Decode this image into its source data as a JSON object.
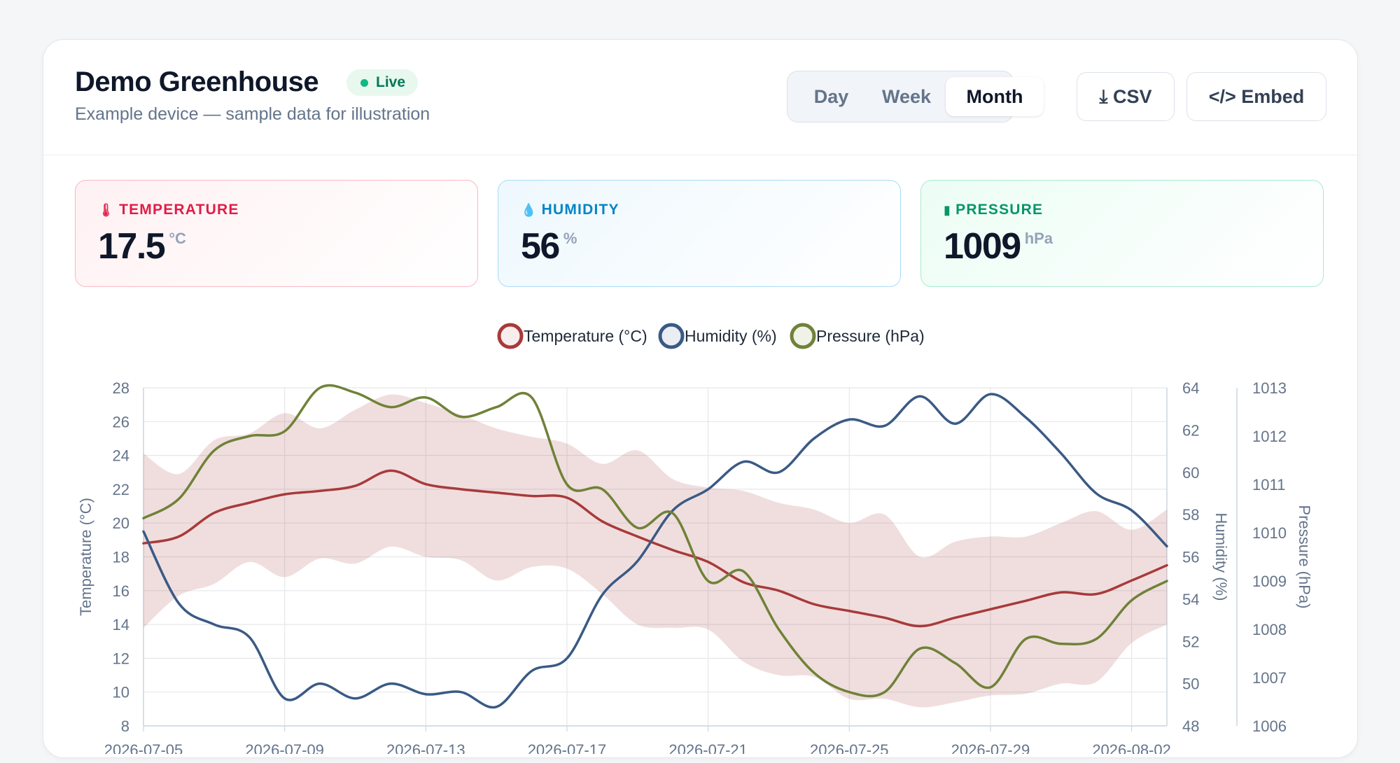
{
  "header": {
    "title": "Demo Greenhouse",
    "live_label": "Live",
    "subtitle": "Example device — sample data for illustration"
  },
  "range_tabs": [
    {
      "label": "Day",
      "active": false
    },
    {
      "label": "Week",
      "active": false
    },
    {
      "label": "Month",
      "active": true
    }
  ],
  "actions": {
    "csv_label": "⤓ CSV",
    "embed_label": "</> Embed"
  },
  "stats": {
    "temperature": {
      "label": "TEMPERATURE",
      "value": "17.5",
      "unit": "°C",
      "icon": "thermometer-icon",
      "color": "#e11d48"
    },
    "humidity": {
      "label": "HUMIDITY",
      "value": "56",
      "unit": "%",
      "icon": "droplet-icon",
      "color": "#0284c7"
    },
    "pressure": {
      "label": "PRESSURE",
      "value": "1009",
      "unit": "hPa",
      "icon": "gauge-icon",
      "color": "#059669"
    }
  },
  "chart_data": {
    "type": "line",
    "x": [
      "2026-07-05",
      "2026-07-06",
      "2026-07-07",
      "2026-07-08",
      "2026-07-09",
      "2026-07-10",
      "2026-07-11",
      "2026-07-12",
      "2026-07-13",
      "2026-07-14",
      "2026-07-15",
      "2026-07-16",
      "2026-07-17",
      "2026-07-18",
      "2026-07-19",
      "2026-07-20",
      "2026-07-21",
      "2026-07-22",
      "2026-07-23",
      "2026-07-24",
      "2026-07-25",
      "2026-07-26",
      "2026-07-27",
      "2026-07-28",
      "2026-07-29",
      "2026-07-30",
      "2026-07-31",
      "2026-08-01",
      "2026-08-02",
      "2026-08-03"
    ],
    "x_ticks": [
      "2026-07-05",
      "2026-07-09",
      "2026-07-13",
      "2026-07-17",
      "2026-07-21",
      "2026-07-25",
      "2026-07-29",
      "2026-08-02"
    ],
    "axes": {
      "y_left": {
        "label": "Temperature (°C)",
        "min": 8,
        "max": 28,
        "ticks": [
          8,
          10,
          12,
          14,
          16,
          18,
          20,
          22,
          24,
          26,
          28
        ]
      },
      "y_right1": {
        "label": "Humidity (%)",
        "min": 48,
        "max": 64,
        "ticks": [
          48,
          50,
          52,
          54,
          56,
          58,
          60,
          62,
          64
        ]
      },
      "y_right2": {
        "label": "Pressure (hPa)",
        "min": 1006,
        "max": 1013,
        "ticks": [
          1006,
          1007,
          1008,
          1009,
          1010,
          1011,
          1012,
          1013
        ]
      }
    },
    "grid": true,
    "legend_position": "top-center",
    "series": [
      {
        "name": "Temperature (°C)",
        "axis": "y_left",
        "color": "#a83a3a",
        "values": [
          18.8,
          19.2,
          20.6,
          21.2,
          21.7,
          21.9,
          22.2,
          23.1,
          22.3,
          22.0,
          21.8,
          21.6,
          21.5,
          20.1,
          19.2,
          18.4,
          17.7,
          16.5,
          16.0,
          15.2,
          14.8,
          14.4,
          13.9,
          14.4,
          14.9,
          15.4,
          15.9,
          15.8,
          16.6,
          17.5
        ],
        "band_min": [
          13.8,
          15.7,
          16.4,
          17.7,
          16.8,
          17.9,
          17.6,
          18.6,
          18.0,
          17.8,
          16.6,
          17.4,
          17.3,
          15.8,
          14.0,
          13.8,
          13.7,
          11.8,
          11.0,
          10.9,
          9.6,
          9.6,
          9.1,
          9.4,
          9.8,
          9.9,
          10.5,
          10.6,
          12.9,
          14.0
        ],
        "band_max": [
          24.1,
          22.9,
          24.9,
          25.3,
          26.5,
          25.6,
          26.7,
          27.6,
          27.1,
          26.4,
          25.6,
          25.1,
          24.7,
          23.5,
          24.3,
          22.6,
          22.1,
          21.9,
          21.2,
          20.8,
          20.0,
          20.5,
          18.0,
          18.9,
          19.2,
          19.2,
          20.0,
          20.7,
          19.6,
          20.8
        ]
      },
      {
        "name": "Humidity (%)",
        "axis": "y_right1",
        "color": "#3a5a85",
        "values": [
          57.2,
          53.8,
          52.8,
          52.2,
          49.3,
          50.0,
          49.3,
          50.0,
          49.5,
          49.6,
          48.9,
          50.6,
          51.2,
          54.2,
          55.8,
          58.2,
          59.2,
          60.5,
          60.0,
          61.6,
          62.5,
          62.2,
          63.6,
          62.3,
          63.7,
          62.6,
          60.9,
          59.0,
          58.2,
          56.5
        ]
      },
      {
        "name": "Pressure (hPa)",
        "axis": "y_right2",
        "color": "#6f8238",
        "values": [
          1010.3,
          1010.7,
          1011.7,
          1012.0,
          1012.1,
          1013.0,
          1012.9,
          1012.6,
          1012.8,
          1012.4,
          1012.6,
          1012.8,
          1011.0,
          1010.9,
          1010.1,
          1010.4,
          1009.0,
          1009.2,
          1008.0,
          1007.1,
          1006.7,
          1006.7,
          1007.6,
          1007.3,
          1006.8,
          1007.8,
          1007.7,
          1007.8,
          1008.6,
          1009.0
        ]
      }
    ]
  }
}
